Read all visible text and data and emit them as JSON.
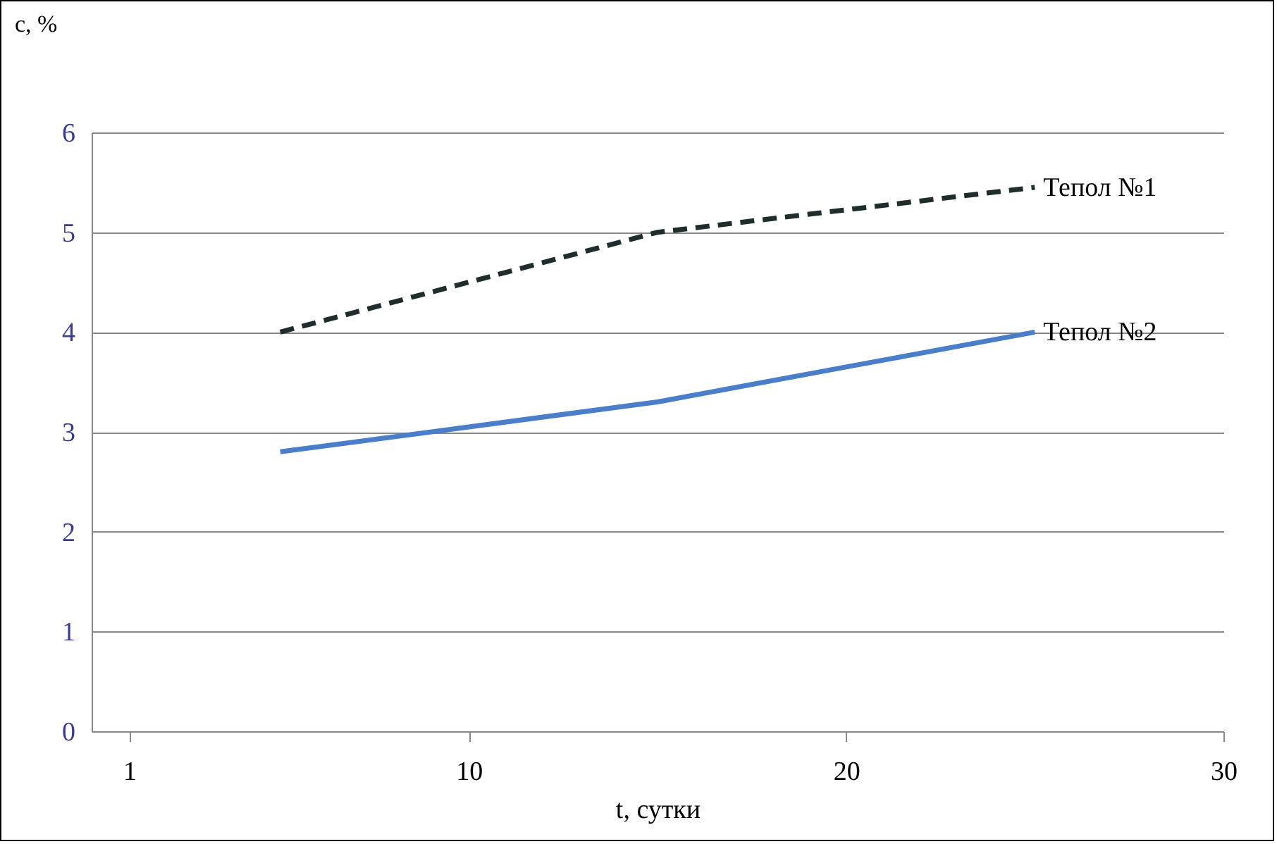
{
  "chart_data": {
    "type": "line",
    "xlabel": "t, сутки",
    "ylabel": "c, %",
    "xlim": [
      0,
      30
    ],
    "xticks": [
      {
        "value": 1,
        "label": "1"
      },
      10,
      20,
      30
    ],
    "ylim": [
      0,
      6
    ],
    "yticks": [
      0,
      1,
      2,
      3,
      4,
      5,
      6
    ],
    "grid": "y",
    "series": [
      {
        "name": "Тепол №1",
        "color": "#1f2d2d",
        "line_style": "dashed",
        "x": [
          5,
          11,
          15,
          25
        ],
        "values": [
          4.0,
          4.6,
          5.0,
          5.45
        ]
      },
      {
        "name": "Тепол №2",
        "color": "#4a7ec8",
        "line_style": "solid",
        "x": [
          5,
          10,
          15,
          20,
          25
        ],
        "values": [
          2.8,
          3.05,
          3.3,
          3.65,
          4.0
        ]
      }
    ]
  }
}
